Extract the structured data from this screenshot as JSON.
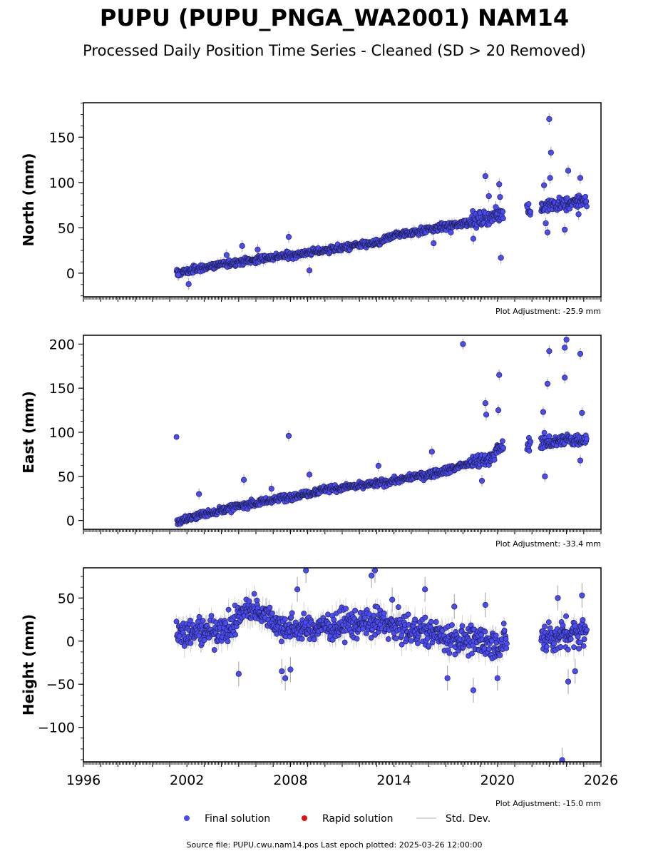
{
  "title": "PUPU (PUPU_PNGA_WA2001) NAM14",
  "subtitle": "Processed Daily Position Time Series - Cleaned (SD > 20 Removed)",
  "footer": "Source file: PUPU.cwu.nam14.pos  Last epoch plotted: 2025-03-26 12:00:00",
  "legend": [
    {
      "label": "Final solution",
      "color": "#4b4bf5"
    },
    {
      "label": "Rapid solution",
      "color": "#e01010"
    },
    {
      "label": "Std. Dev.",
      "color": "#c8c8c8"
    }
  ],
  "colors": {
    "final": "#4b4bf5",
    "rapid": "#e01010",
    "stddev": "#b0b0b0",
    "marker_edge": "#1a1a40"
  },
  "chart_data": [
    {
      "type": "scatter",
      "panel": "north",
      "ylabel": "North (mm)",
      "adjustment": "Plot Adjustment: -25.9 mm",
      "xlim": [
        1996,
        2026
      ],
      "ylim": [
        -26,
        188
      ],
      "yticks": [
        0,
        50,
        100,
        150
      ],
      "ytick_labels": [
        "0",
        "50",
        "100",
        "150"
      ],
      "trend": [
        [
          2001.4,
          0
        ],
        [
          2004,
          10
        ],
        [
          2008,
          20
        ],
        [
          2011,
          28
        ],
        [
          2013.2,
          34
        ],
        [
          2014,
          42
        ],
        [
          2016,
          48
        ],
        [
          2018,
          55
        ],
        [
          2020.3,
          65
        ],
        [
          2022.4,
          72
        ],
        [
          2025.2,
          80
        ]
      ],
      "points": [
        {
          "x": 2001.5,
          "y": -2
        },
        {
          "x": 2002.1,
          "y": -12
        },
        {
          "x": 2004.3,
          "y": 20
        },
        {
          "x": 2005.2,
          "y": 30
        },
        {
          "x": 2006.1,
          "y": 26
        },
        {
          "x": 2007.9,
          "y": 40
        },
        {
          "x": 2009.1,
          "y": 3
        },
        {
          "x": 2016.3,
          "y": 33
        },
        {
          "x": 2017.3,
          "y": 45
        },
        {
          "x": 2018.6,
          "y": 38
        },
        {
          "x": 2019.3,
          "y": 107
        },
        {
          "x": 2019.5,
          "y": 85
        },
        {
          "x": 2019.9,
          "y": 73
        },
        {
          "x": 2020.1,
          "y": 98
        },
        {
          "x": 2020.2,
          "y": 17
        },
        {
          "x": 2020.15,
          "y": 84
        },
        {
          "x": 2023.0,
          "y": 170
        },
        {
          "x": 2023.1,
          "y": 133
        },
        {
          "x": 2022.7,
          "y": 97
        },
        {
          "x": 2022.9,
          "y": 45
        },
        {
          "x": 2023.05,
          "y": 105
        },
        {
          "x": 2023.9,
          "y": 48
        },
        {
          "x": 2024.1,
          "y": 113
        },
        {
          "x": 2024.8,
          "y": 105
        },
        {
          "x": 2024.7,
          "y": 65
        },
        {
          "x": 2022.8,
          "y": 55
        }
      ],
      "gaps": [
        [
          2020.35,
          2021.7
        ],
        [
          2021.95,
          2022.5
        ]
      ]
    },
    {
      "type": "scatter",
      "panel": "east",
      "ylabel": "East (mm)",
      "adjustment": "Plot Adjustment: -33.4 mm",
      "xlim": [
        1996,
        2026
      ],
      "ylim": [
        -10,
        210
      ],
      "yticks": [
        0,
        50,
        100,
        150,
        200
      ],
      "ytick_labels": [
        "0",
        "50",
        "100",
        "150",
        "200"
      ],
      "trend": [
        [
          2001.4,
          -2
        ],
        [
          2002.5,
          5
        ],
        [
          2004,
          12
        ],
        [
          2006,
          20
        ],
        [
          2008,
          27
        ],
        [
          2010,
          35
        ],
        [
          2012,
          39
        ],
        [
          2014,
          45
        ],
        [
          2016,
          52
        ],
        [
          2018,
          62
        ],
        [
          2019.5,
          70
        ],
        [
          2020.3,
          85
        ],
        [
          2022.4,
          88
        ],
        [
          2025.2,
          93
        ]
      ],
      "points": [
        {
          "x": 2002.7,
          "y": 30
        },
        {
          "x": 2005.3,
          "y": 46
        },
        {
          "x": 2006.9,
          "y": 36
        },
        {
          "x": 2007.9,
          "y": 96
        },
        {
          "x": 2009.1,
          "y": 52
        },
        {
          "x": 2013.1,
          "y": 62
        },
        {
          "x": 2016.2,
          "y": 78
        },
        {
          "x": 2018.0,
          "y": 200
        },
        {
          "x": 2019.3,
          "y": 133
        },
        {
          "x": 2019.35,
          "y": 120
        },
        {
          "x": 2019.1,
          "y": 45
        },
        {
          "x": 2020.1,
          "y": 165
        },
        {
          "x": 2020.05,
          "y": 125
        },
        {
          "x": 2022.9,
          "y": 155
        },
        {
          "x": 2023.0,
          "y": 192
        },
        {
          "x": 2022.75,
          "y": 50
        },
        {
          "x": 2022.65,
          "y": 123
        },
        {
          "x": 2023.9,
          "y": 162
        },
        {
          "x": 2023.9,
          "y": 196
        },
        {
          "x": 2024.0,
          "y": 205
        },
        {
          "x": 2024.8,
          "y": 189
        },
        {
          "x": 2024.8,
          "y": 68
        },
        {
          "x": 2024.9,
          "y": 122
        }
      ],
      "gaps": [
        [
          2020.35,
          2021.7
        ],
        [
          2021.95,
          2022.5
        ]
      ]
    },
    {
      "type": "scatter",
      "panel": "height",
      "ylabel": "Height (mm)",
      "adjustment": "Plot Adjustment: -15.0 mm",
      "xlim": [
        1996,
        2026
      ],
      "ylim": [
        -140,
        85
      ],
      "yticks": [
        -100,
        -50,
        0,
        50
      ],
      "ytick_labels": [
        "−100",
        "−50",
        "0",
        "50"
      ],
      "xticks": [
        1996,
        2002,
        2008,
        2014,
        2020,
        2026
      ],
      "xtick_labels": [
        "1996",
        "2002",
        "2008",
        "2014",
        "2020",
        "2026"
      ],
      "trend": [
        [
          2001.4,
          10
        ],
        [
          2003,
          10
        ],
        [
          2004.5,
          15
        ],
        [
          2005.5,
          40
        ],
        [
          2006.5,
          35
        ],
        [
          2007.5,
          15
        ],
        [
          2009,
          15
        ],
        [
          2011,
          20
        ],
        [
          2013,
          22
        ],
        [
          2015,
          12
        ],
        [
          2017,
          5
        ],
        [
          2019,
          0
        ],
        [
          2020.3,
          -5
        ],
        [
          2022.4,
          5
        ],
        [
          2023.5,
          5
        ],
        [
          2025.2,
          10
        ]
      ],
      "points": [
        {
          "x": 2005.0,
          "y": -38
        },
        {
          "x": 2007.5,
          "y": -35
        },
        {
          "x": 2007.7,
          "y": -43
        },
        {
          "x": 2008.0,
          "y": -33
        },
        {
          "x": 2008.4,
          "y": 60
        },
        {
          "x": 2008.9,
          "y": 82
        },
        {
          "x": 2012.7,
          "y": 76
        },
        {
          "x": 2012.9,
          "y": 82
        },
        {
          "x": 2013.9,
          "y": 48
        },
        {
          "x": 2015.8,
          "y": 60
        },
        {
          "x": 2017.1,
          "y": -43
        },
        {
          "x": 2017.5,
          "y": 40
        },
        {
          "x": 2018.6,
          "y": -57
        },
        {
          "x": 2020.0,
          "y": -43
        },
        {
          "x": 2019.3,
          "y": 42
        },
        {
          "x": 2023.5,
          "y": 50
        },
        {
          "x": 2023.75,
          "y": -138
        },
        {
          "x": 2024.1,
          "y": -47
        },
        {
          "x": 2024.9,
          "y": 53
        },
        {
          "x": 2024.5,
          "y": -35
        }
      ],
      "gaps": [
        [
          2020.55,
          2022.5
        ]
      ]
    }
  ]
}
